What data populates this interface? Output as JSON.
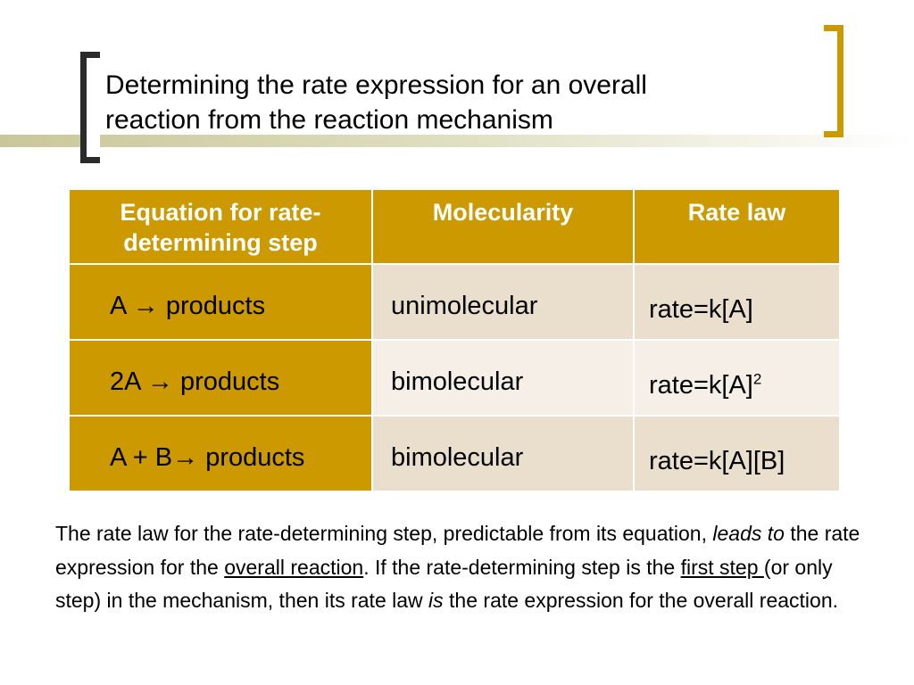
{
  "title": {
    "line1": "Determining the rate expression for an overall",
    "line2": "reaction from the reaction mechanism"
  },
  "table": {
    "headers": {
      "equation": "Equation for rate-determining step",
      "molecularity": "Molecularity",
      "rate_law": "Rate law"
    },
    "rows": [
      {
        "equation": "A → products",
        "molecularity": "unimolecular",
        "rate_law": "rate=k[A]",
        "rate_law_sup": ""
      },
      {
        "equation": "2A → products",
        "molecularity": "bimolecular",
        "rate_law": "rate=k[A]",
        "rate_law_sup": "2"
      },
      {
        "equation": "A + B→ products",
        "molecularity": "bimolecular",
        "rate_law": "rate=k[A][B]",
        "rate_law_sup": ""
      }
    ]
  },
  "paragraph": {
    "p1": "The rate law for the rate-determining step, predictable from its equation, ",
    "p2_italic": "leads to",
    "p3": " the rate expression for the ",
    "p4_underline": "overall reaction",
    "p5": ".  If the rate-determining step is the ",
    "p6_underline": "first step ",
    "p7": "(or only step) in the mechanism, then its rate law ",
    "p8_italic": "is",
    "p9": " the rate expression for the overall reaction."
  },
  "colors": {
    "accent_gold": "#cc9900",
    "cell_tan": "#eadfcd",
    "cell_light": "#f5efe8",
    "bracket_dark": "#2b2b2b"
  }
}
